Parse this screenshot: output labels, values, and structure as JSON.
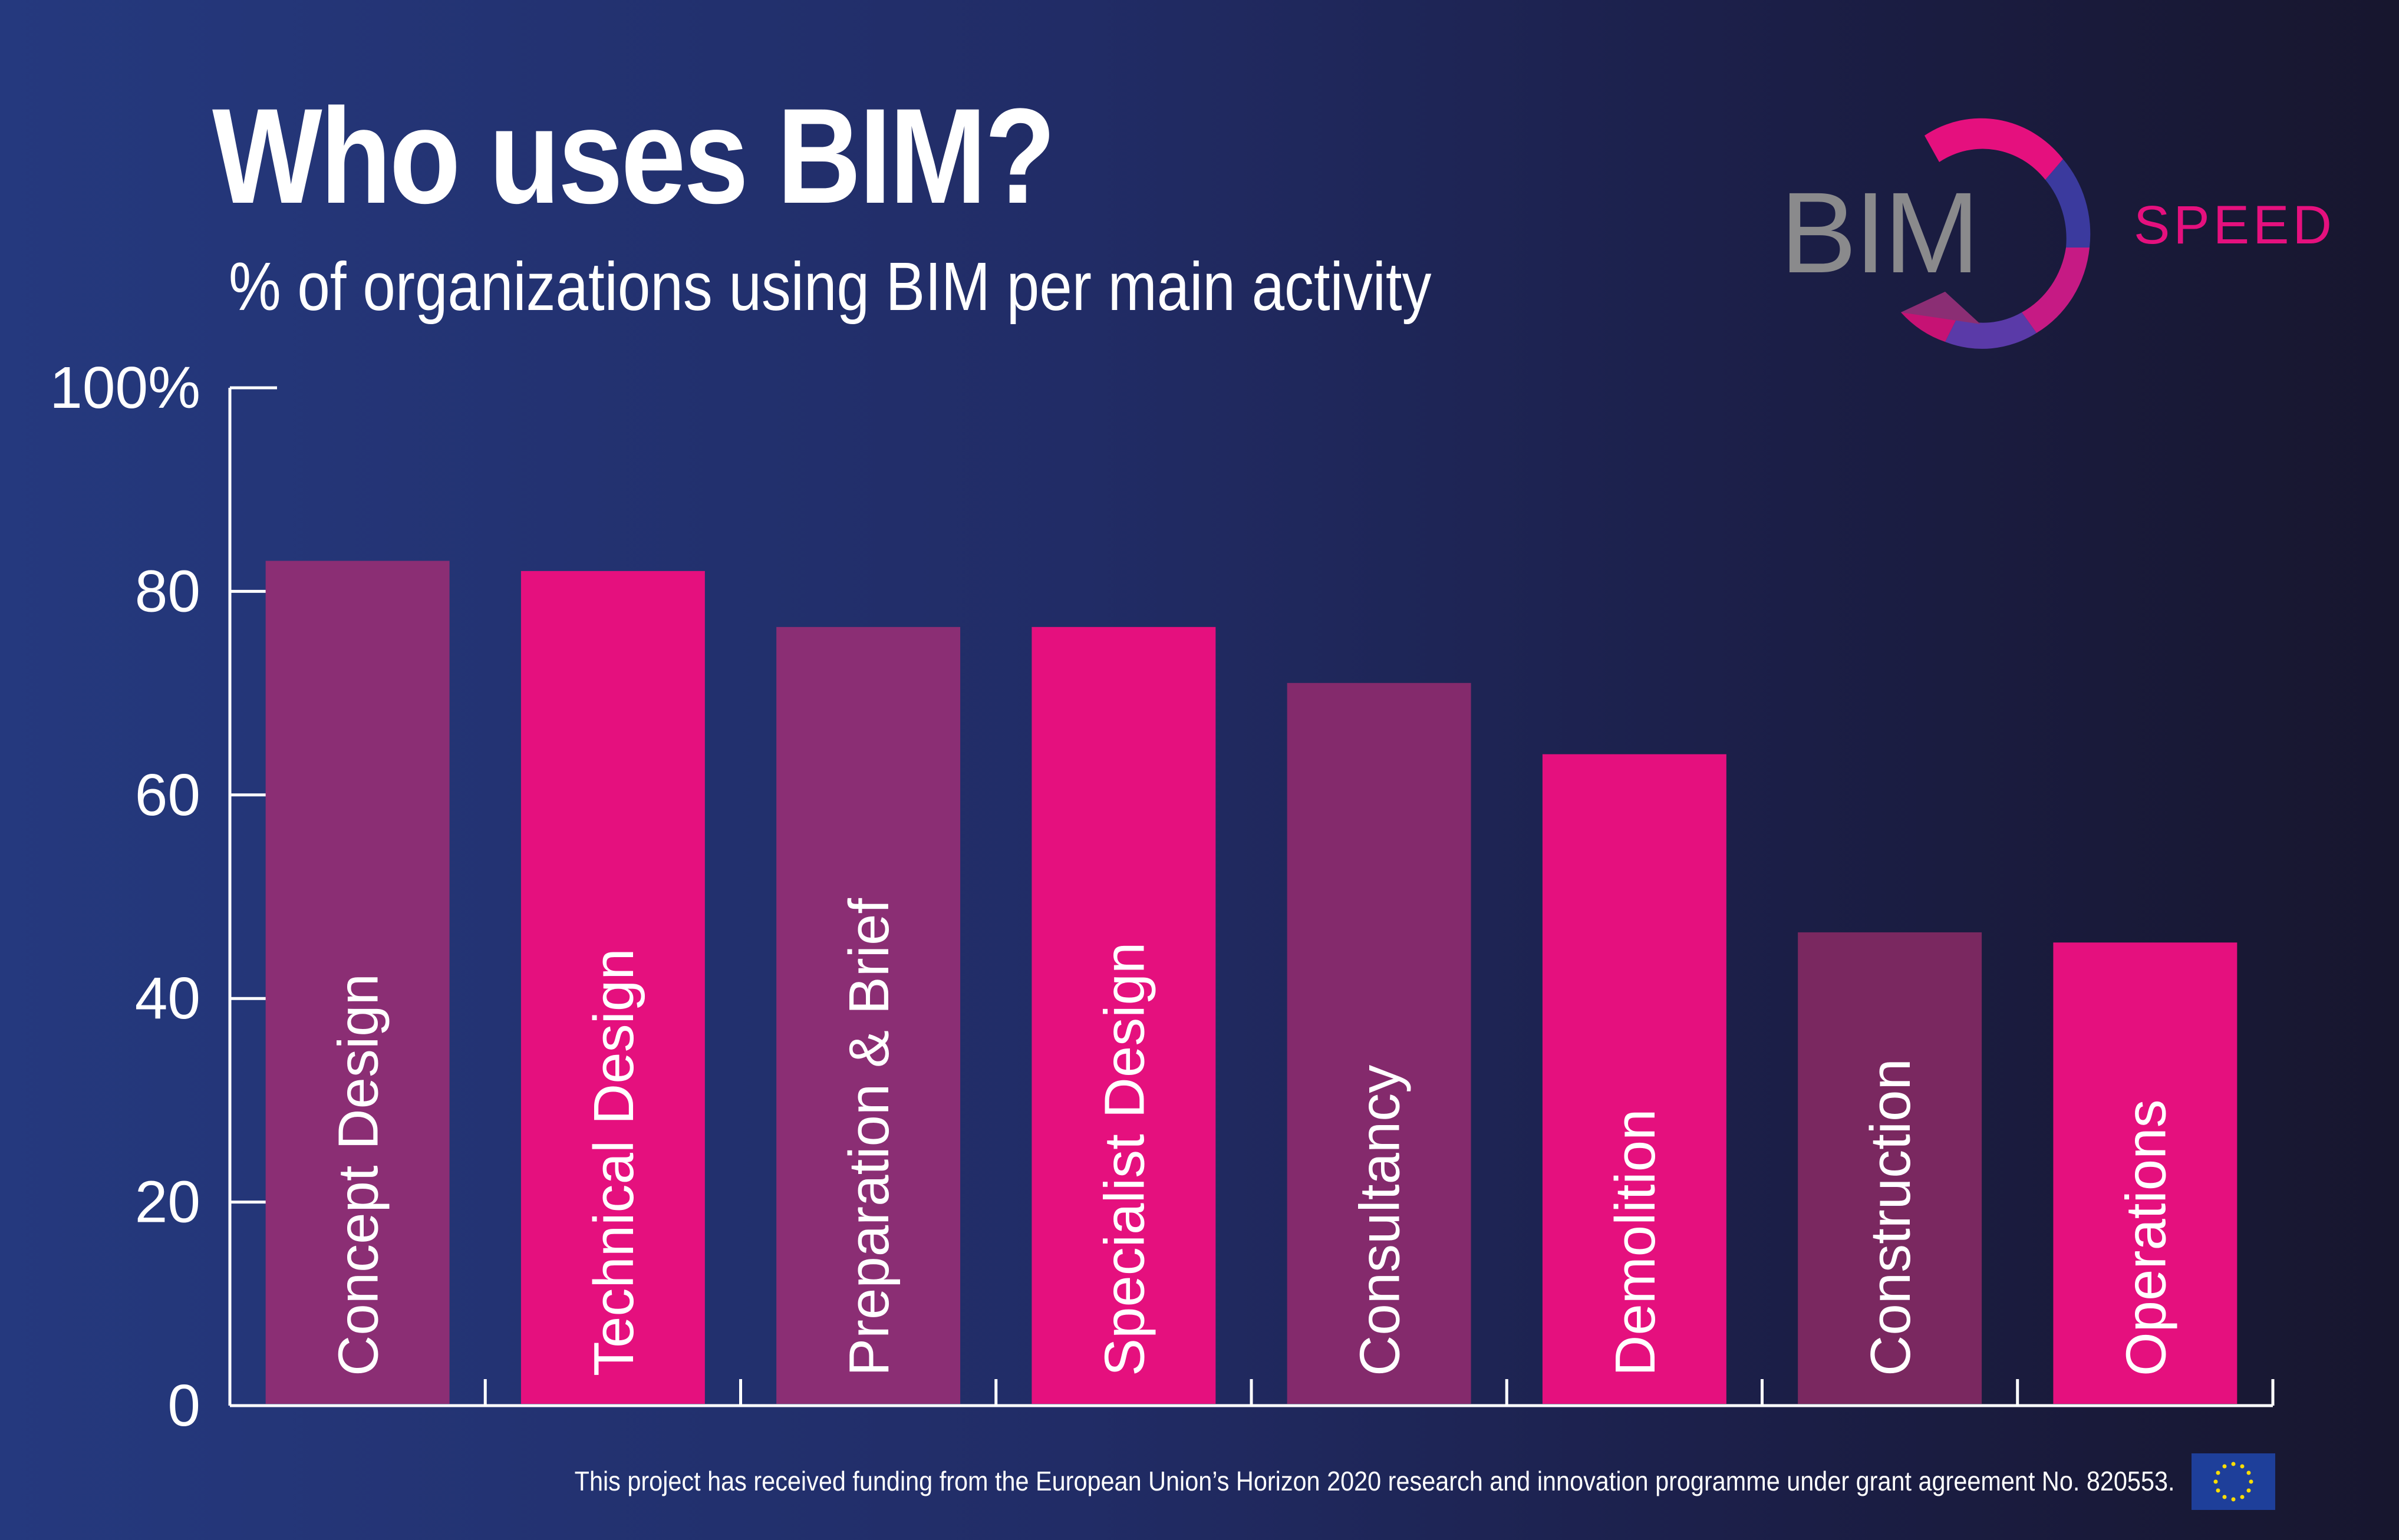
{
  "title": "Who uses BIM?",
  "subtitle": "% of organizations using BIM per main activity",
  "logo": {
    "text": "BIM",
    "tagline": "SPEED"
  },
  "footer": "This project has received funding from the European Union’s Horizon 2020 research and innovation programme under grant agreement No. 820553.",
  "colors": {
    "bar_dark": "#8b2e74",
    "bar_bright": "#e5107e",
    "axis": "#ffffff",
    "logo_gray": "#8a8a8c",
    "logo_magenta": "#e5107e",
    "eu_blue": "#1e3f9a",
    "eu_star": "#ffdd00"
  },
  "chart_data": {
    "type": "bar",
    "categories": [
      "Concept Design",
      "Technical Design",
      "Preparation & Brief",
      "Specialist Design",
      "Consultancy",
      "Demolition",
      "Construction",
      "Operations"
    ],
    "values": [
      83,
      82,
      76.5,
      76.5,
      71,
      64,
      46.5,
      45.5
    ],
    "bar_colors": [
      "#8b2e74",
      "#e5107e",
      "#8b2e74",
      "#e5107e",
      "#842a6c",
      "#e5107e",
      "#7a2860",
      "#e5107e"
    ],
    "ylim": [
      0,
      100
    ],
    "yticks": [
      0,
      20,
      40,
      60,
      80,
      100
    ],
    "ytick_labels": [
      "0",
      "20",
      "40",
      "60",
      "80",
      "100%"
    ],
    "xlabel": "",
    "ylabel": "",
    "grid": false
  }
}
